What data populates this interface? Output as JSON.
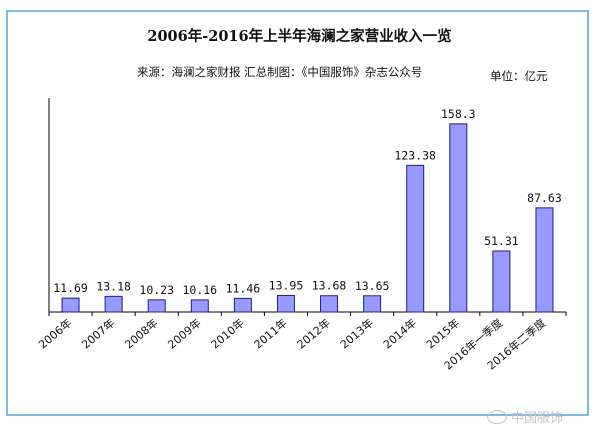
{
  "chart_data": {
    "type": "bar",
    "title": "2006年-2016年上半年海澜之家营业收入一览",
    "subtitle": "来源：海澜之家财报  汇总制图：《中国服饰》杂志公众号",
    "unit": "单位：亿元",
    "categories": [
      "2006年",
      "2007年",
      "2008年",
      "2009年",
      "2010年",
      "2011年",
      "2012年",
      "2013年",
      "2014年",
      "2015年",
      "2016年一季度",
      "2016年二季度"
    ],
    "value_labels": [
      "11.69",
      "13.18",
      "10.23",
      "10.16",
      "11.46",
      "13.95",
      "13.68",
      "13.65",
      "123.38",
      "158.3",
      "51.31",
      "87.63"
    ],
    "values": [
      11.69,
      13.18,
      10.23,
      10.16,
      11.46,
      13.95,
      13.68,
      13.65,
      123.38,
      158.3,
      51.31,
      87.63
    ],
    "ylim": [
      0,
      175
    ],
    "grid": false,
    "legend": "none",
    "bar_color": "#9999ff",
    "bar_outline": "#1f1f7a"
  },
  "watermark": {
    "text": "中国服饰",
    "icon": "wechat-icon"
  }
}
